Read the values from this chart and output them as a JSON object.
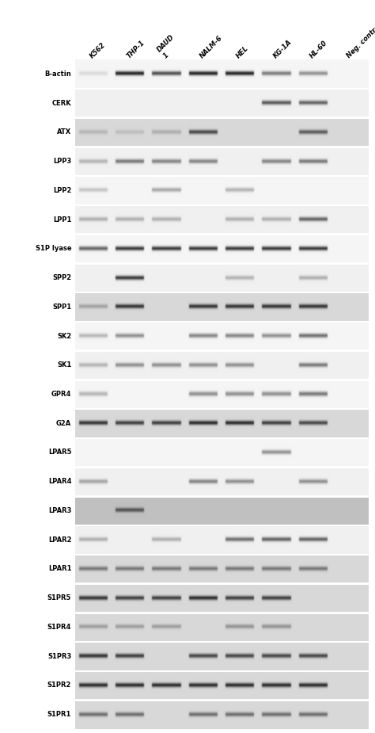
{
  "col_labels": [
    "K562",
    "THP-1",
    "DAUD\n1",
    "NALM-6",
    "HEL",
    "KG-1A",
    "HL-60",
    "Neg. control"
  ],
  "row_labels": [
    "S1PR1",
    "S1PR2",
    "S1PR3",
    "S1PR4",
    "S1PR5",
    "LPAR1",
    "LPAR2",
    "LPAR3",
    "LPAR4",
    "LPAR5",
    "G2A",
    "GPR4",
    "SK1",
    "SK2",
    "SPP1",
    "SPP2",
    "S1P lyase",
    "LPP1",
    "LPP2",
    "LPP3",
    "ATX",
    "CERK",
    "B-actin"
  ],
  "n_cols": 8,
  "n_rows": 23,
  "bands": [
    [
      0.12,
      0.95,
      0.75,
      0.95,
      0.95,
      0.55,
      0.45,
      0.0
    ],
    [
      0.0,
      0.0,
      0.0,
      0.0,
      0.0,
      0.7,
      0.65,
      0.0
    ],
    [
      0.18,
      0.14,
      0.22,
      0.75,
      0.0,
      0.0,
      0.65,
      0.0
    ],
    [
      0.28,
      0.55,
      0.5,
      0.5,
      0.0,
      0.5,
      0.55,
      0.0
    ],
    [
      0.22,
      0.0,
      0.35,
      0.0,
      0.3,
      0.0,
      0.0,
      0.0
    ],
    [
      0.3,
      0.3,
      0.3,
      0.0,
      0.3,
      0.3,
      0.65,
      0.0
    ],
    [
      0.65,
      0.85,
      0.85,
      0.85,
      0.85,
      0.85,
      0.85,
      0.0
    ],
    [
      0.0,
      0.85,
      0.0,
      0.0,
      0.28,
      0.0,
      0.3,
      0.0
    ],
    [
      0.28,
      0.85,
      0.0,
      0.85,
      0.85,
      0.85,
      0.85,
      0.0
    ],
    [
      0.28,
      0.45,
      0.0,
      0.5,
      0.5,
      0.45,
      0.6,
      0.0
    ],
    [
      0.28,
      0.45,
      0.45,
      0.45,
      0.45,
      0.0,
      0.55,
      0.0
    ],
    [
      0.28,
      0.0,
      0.0,
      0.45,
      0.45,
      0.45,
      0.55,
      0.0
    ],
    [
      0.85,
      0.8,
      0.8,
      0.9,
      0.9,
      0.8,
      0.75,
      0.0
    ],
    [
      0.0,
      0.0,
      0.0,
      0.0,
      0.0,
      0.45,
      0.0,
      0.0
    ],
    [
      0.35,
      0.0,
      0.0,
      0.5,
      0.45,
      0.0,
      0.45,
      0.0
    ],
    [
      0.0,
      0.65,
      0.0,
      0.0,
      0.0,
      0.0,
      0.0,
      0.0
    ],
    [
      0.3,
      0.0,
      0.3,
      0.0,
      0.6,
      0.65,
      0.65,
      0.0
    ],
    [
      0.5,
      0.5,
      0.5,
      0.5,
      0.5,
      0.5,
      0.5,
      0.0
    ],
    [
      0.85,
      0.8,
      0.8,
      0.9,
      0.8,
      0.8,
      0.0,
      0.0
    ],
    [
      0.3,
      0.3,
      0.3,
      0.0,
      0.35,
      0.35,
      0.0,
      0.0
    ],
    [
      0.85,
      0.8,
      0.0,
      0.75,
      0.75,
      0.75,
      0.75,
      0.0
    ],
    [
      0.9,
      0.9,
      0.9,
      0.9,
      0.9,
      0.9,
      0.9,
      0.0
    ],
    [
      0.55,
      0.55,
      0.0,
      0.55,
      0.55,
      0.55,
      0.55,
      0.0
    ]
  ],
  "row_bg": [
    "#f5f5f5",
    "#f0f0f0",
    "#d8d8d8",
    "#f0f0f0",
    "#f5f5f5",
    "#f0f0f0",
    "#f5f5f5",
    "#f0f0f0",
    "#d8d8d8",
    "#f5f5f5",
    "#f0f0f0",
    "#f5f5f5",
    "#d8d8d8",
    "#f5f5f5",
    "#f0f0f0",
    "#c0c0c0",
    "#f0f0f0",
    "#d8d8d8",
    "#d8d8d8",
    "#d8d8d8",
    "#d8d8d8",
    "#d8d8d8",
    "#d8d8d8"
  ]
}
